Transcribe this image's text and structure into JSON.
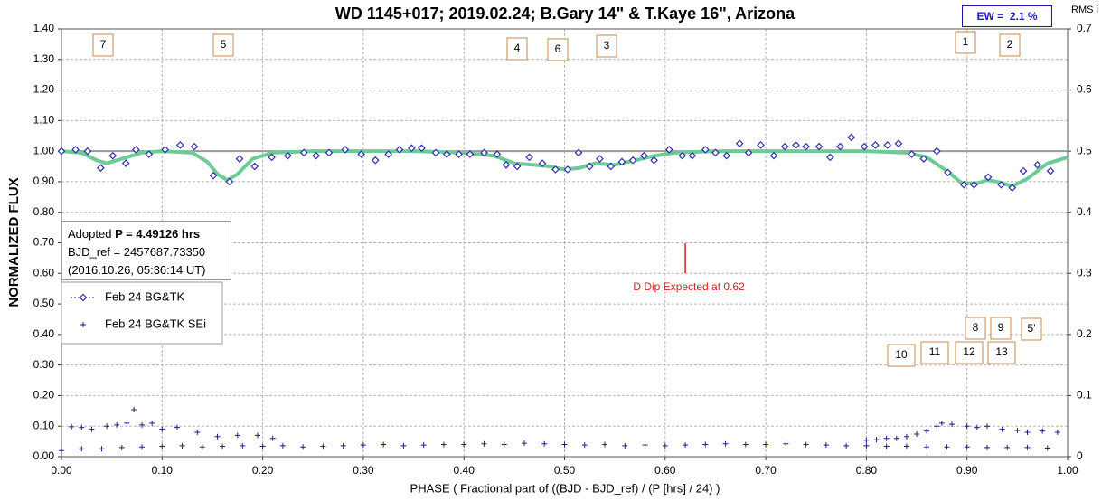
{
  "chart_data": {
    "type": "scatter",
    "title": "WD 1145+017; 2019.02.24; B.Gary 14\" & T.Kaye 16\", Arizona",
    "x_label": "PHASE ( Fractional part of ((BJD - BJD_ref) / (P [hrs] / 24) )",
    "y_label": "NORMALIZED FLUX",
    "y2_label": "RMS i",
    "xlim": [
      0,
      1
    ],
    "ylim": [
      0,
      1.4
    ],
    "y2lim": [
      0,
      0.7
    ],
    "xticks": [
      {
        "value": 0,
        "label": "0.00"
      },
      {
        "value": 0.1,
        "label": "0.10"
      },
      {
        "value": 0.2,
        "label": "0.20"
      },
      {
        "value": 0.3,
        "label": "0.30"
      },
      {
        "value": 0.4,
        "label": "0.40"
      },
      {
        "value": 0.5,
        "label": "0.50"
      },
      {
        "value": 0.6,
        "label": "0.60"
      },
      {
        "value": 0.7,
        "label": "0.70"
      },
      {
        "value": 0.8,
        "label": "0.80"
      },
      {
        "value": 0.9,
        "label": "0.90"
      },
      {
        "value": 1,
        "label": "1.00"
      }
    ],
    "yticks": [
      {
        "value": 0,
        "label": "0.00"
      },
      {
        "value": 0.1,
        "label": "0.10"
      },
      {
        "value": 0.2,
        "label": "0.20"
      },
      {
        "value": 0.3,
        "label": "0.30"
      },
      {
        "value": 0.4,
        "label": "0.40"
      },
      {
        "value": 0.5,
        "label": "0.50"
      },
      {
        "value": 0.6,
        "label": "0.60"
      },
      {
        "value": 0.7,
        "label": "0.70"
      },
      {
        "value": 0.8,
        "label": "0.80"
      },
      {
        "value": 0.9,
        "label": "0.90"
      },
      {
        "value": 1,
        "label": "1.00"
      },
      {
        "value": 1.1,
        "label": "1.10"
      },
      {
        "value": 1.2,
        "label": "1.20"
      },
      {
        "value": 1.3,
        "label": "1.30"
      },
      {
        "value": 1.4,
        "label": "1.40"
      }
    ],
    "y2ticks": [
      0,
      0.1,
      0.2,
      0.3,
      0.4,
      0.5,
      0.6,
      0.7
    ],
    "grid": true,
    "reference_line": 1.0,
    "series": [
      {
        "name": "Feb 24 BG&TK",
        "color": "#2f2fa8",
        "marker": "diamond",
        "x": [
          0,
          0.014,
          0.026,
          0.039,
          0.051,
          0.064,
          0.074,
          0.087,
          0.103,
          0.118,
          0.132,
          0.151,
          0.167,
          0.177,
          0.192,
          0.209,
          0.225,
          0.241,
          0.253,
          0.266,
          0.282,
          0.298,
          0.312,
          0.325,
          0.336,
          0.348,
          0.358,
          0.372,
          0.383,
          0.395,
          0.406,
          0.42,
          0.433,
          0.442,
          0.453,
          0.465,
          0.478,
          0.491,
          0.503,
          0.514,
          0.525,
          0.535,
          0.546,
          0.557,
          0.568,
          0.579,
          0.589,
          0.604,
          0.617,
          0.627,
          0.64,
          0.65,
          0.661,
          0.674,
          0.683,
          0.695,
          0.708,
          0.719,
          0.73,
          0.74,
          0.753,
          0.764,
          0.774,
          0.785,
          0.798,
          0.809,
          0.821,
          0.832,
          0.845,
          0.857,
          0.87,
          0.881,
          0.897,
          0.907,
          0.921,
          0.934,
          0.945,
          0.956,
          0.97,
          0.983
        ],
        "values": [
          1.0,
          1.005,
          1.0,
          0.945,
          0.985,
          0.96,
          1.005,
          0.99,
          1.005,
          1.02,
          1.015,
          0.92,
          0.9,
          0.975,
          0.95,
          0.98,
          0.985,
          0.995,
          0.985,
          0.995,
          1.005,
          0.99,
          0.97,
          0.99,
          1.005,
          1.01,
          1.01,
          0.995,
          0.99,
          0.99,
          0.99,
          0.995,
          0.99,
          0.955,
          0.95,
          0.98,
          0.96,
          0.94,
          0.94,
          0.995,
          0.95,
          0.975,
          0.95,
          0.965,
          0.97,
          0.985,
          0.97,
          1.005,
          0.985,
          0.985,
          1.005,
          0.995,
          0.985,
          1.025,
          0.995,
          1.02,
          0.985,
          1.015,
          1.02,
          1.015,
          1.015,
          0.98,
          1.015,
          1.045,
          1.015,
          1.02,
          1.02,
          1.025,
          0.99,
          0.975,
          1.0,
          0.93,
          0.89,
          0.89,
          0.915,
          0.89,
          0.88,
          0.935,
          0.955,
          0.935
        ]
      },
      {
        "name": "Feb 24 BG&TK SEi",
        "color": "#1f1f80",
        "marker": "plus",
        "axis": "y2",
        "x": [
          0,
          0.02,
          0.04,
          0.06,
          0.08,
          0.1,
          0.12,
          0.14,
          0.16,
          0.18,
          0.2,
          0.22,
          0.24,
          0.26,
          0.28,
          0.3,
          0.32,
          0.34,
          0.36,
          0.38,
          0.4,
          0.42,
          0.44,
          0.46,
          0.48,
          0.5,
          0.52,
          0.54,
          0.56,
          0.58,
          0.6,
          0.62,
          0.64,
          0.66,
          0.68,
          0.7,
          0.72,
          0.74,
          0.76,
          0.78,
          0.8,
          0.82,
          0.84,
          0.86,
          0.88,
          0.9,
          0.92,
          0.94,
          0.96,
          0.98,
          0.01,
          0.02,
          0.03,
          0.045,
          0.055,
          0.065,
          0.072,
          0.08,
          0.09,
          0.1,
          0.115,
          0.135,
          0.155,
          0.175,
          0.195,
          0.21,
          0.8,
          0.81,
          0.82,
          0.83,
          0.84,
          0.85,
          0.86,
          0.87,
          0.875,
          0.885,
          0.9,
          0.91,
          0.92,
          0.935,
          0.95,
          0.96,
          0.975,
          0.99
        ],
        "values": [
          0.01,
          0.013,
          0.013,
          0.015,
          0.016,
          0.017,
          0.018,
          0.016,
          0.017,
          0.018,
          0.017,
          0.018,
          0.016,
          0.017,
          0.018,
          0.019,
          0.02,
          0.018,
          0.019,
          0.02,
          0.02,
          0.021,
          0.02,
          0.022,
          0.021,
          0.02,
          0.019,
          0.02,
          0.018,
          0.019,
          0.018,
          0.019,
          0.02,
          0.021,
          0.02,
          0.02,
          0.021,
          0.02,
          0.019,
          0.018,
          0.018,
          0.017,
          0.017,
          0.016,
          0.016,
          0.016,
          0.015,
          0.015,
          0.015,
          0.014,
          0.049,
          0.048,
          0.045,
          0.05,
          0.052,
          0.055,
          0.077,
          0.052,
          0.055,
          0.045,
          0.048,
          0.04,
          0.033,
          0.035,
          0.035,
          0.03,
          0.027,
          0.028,
          0.03,
          0.03,
          0.033,
          0.037,
          0.042,
          0.05,
          0.055,
          0.053,
          0.05,
          0.048,
          0.05,
          0.045,
          0.043,
          0.04,
          0.042,
          0.04
        ]
      },
      {
        "color": "#6ccc98",
        "marker": "line",
        "x": [
          0,
          0.02,
          0.035,
          0.045,
          0.06,
          0.08,
          0.1,
          0.13,
          0.145,
          0.155,
          0.165,
          0.175,
          0.19,
          0.21,
          0.25,
          0.3,
          0.35,
          0.4,
          0.43,
          0.45,
          0.47,
          0.485,
          0.5,
          0.515,
          0.53,
          0.55,
          0.57,
          0.59,
          0.61,
          0.65,
          0.7,
          0.75,
          0.8,
          0.84,
          0.86,
          0.88,
          0.895,
          0.91,
          0.92,
          0.93,
          0.945,
          0.96,
          0.98,
          1.0
        ],
        "values": [
          1.0,
          0.995,
          0.97,
          0.96,
          0.975,
          0.995,
          1.0,
          0.995,
          0.965,
          0.925,
          0.905,
          0.925,
          0.975,
          0.995,
          1.0,
          1.0,
          1.0,
          0.995,
          0.985,
          0.96,
          0.955,
          0.95,
          0.94,
          0.945,
          0.96,
          0.955,
          0.97,
          0.985,
          0.995,
          1.0,
          1.0,
          1.0,
          1.0,
          0.995,
          0.98,
          0.935,
          0.895,
          0.895,
          0.905,
          0.9,
          0.885,
          0.91,
          0.96,
          0.98
        ]
      }
    ],
    "info": {
      "prefix": "Adopted",
      "period": "P = 4.49126 hrs",
      "bjd_ref": "BJD_ref = 2457687.73350",
      "date": "(2016.10.26, 05:36:14 UT)"
    },
    "ew": "EW =  2.1 %",
    "dip_line": {
      "x": 0.62,
      "label": "D Dip Expected at 0.62"
    },
    "annotations": [
      "7",
      "5",
      "4",
      "6",
      "3",
      "1",
      "2",
      "8",
      "9",
      "5'",
      "10",
      "11",
      "12",
      "13"
    ]
  }
}
